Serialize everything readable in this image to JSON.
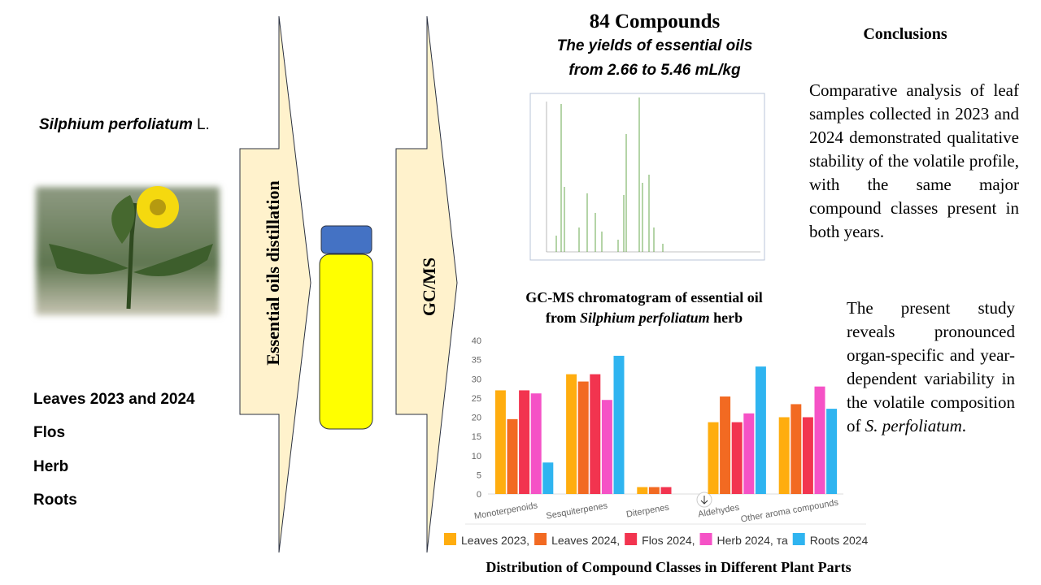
{
  "species": {
    "name": "Silphium perfoliatum",
    "author": "L."
  },
  "materials": [
    "Leaves 2023 and 2024",
    "Flos",
    "Herb",
    "Roots"
  ],
  "steps": {
    "distillation": "Essential oils distillation",
    "analysis": "GC/MS"
  },
  "results": {
    "compounds": "84 Compounds",
    "yield_line1": "The yields of essential oils",
    "yield_line2": "from 2.66 to 5.46 mL/kg",
    "chromatogram_caption_line1": "GC-MS chromatogram of essential oil",
    "chromatogram_caption_from": "from ",
    "chromatogram_caption_species": "Silphium perfoliatum",
    "chromatogram_caption_end": " herb"
  },
  "conclusions": {
    "title": "Conclusions",
    "paragraph1": "Comparative analysis of leaf samples collected in 2023 and 2024 demonstrated qualitative stability of the volatile profile, with the same major compound classes present in both years.",
    "paragraph2_text": "The present study reveals pronounced organ-specific and year-dependent variability in the volatile composition of ",
    "paragraph2_species": "S. perfoliatum",
    "paragraph2_end": "."
  },
  "chart_data": {
    "type": "bar",
    "title": "Distribution of Compound Classes in Different Plant Parts",
    "categories": [
      "Monoterpenoids",
      "Sesquiterpenes",
      "Diterpenes",
      "Aldehydes",
      "Other aroma compounds"
    ],
    "series": [
      {
        "name": "Leaves 2023,",
        "color": "#ffad0f",
        "values": [
          27,
          31.2,
          1.8,
          18.7,
          20
        ]
      },
      {
        "name": "Leaves 2024,",
        "color": "#f26a22",
        "values": [
          19.5,
          29.3,
          1.8,
          25.4,
          23.4
        ]
      },
      {
        "name": "Flos 2024,",
        "color": "#f2344f",
        "values": [
          27,
          31.2,
          1.8,
          18.7,
          20
        ]
      },
      {
        "name": "Herb 2024, та",
        "color": "#f552c6",
        "values": [
          26.2,
          24.5,
          0,
          21,
          28
        ]
      },
      {
        "name": "Roots 2024",
        "color": "#2fb4f0",
        "values": [
          8.2,
          36,
          0,
          33.2,
          22.2
        ]
      }
    ],
    "ylim": [
      0,
      40
    ],
    "yticks": [
      0,
      5,
      10,
      15,
      20,
      25,
      30,
      35,
      40
    ],
    "grid": false
  }
}
